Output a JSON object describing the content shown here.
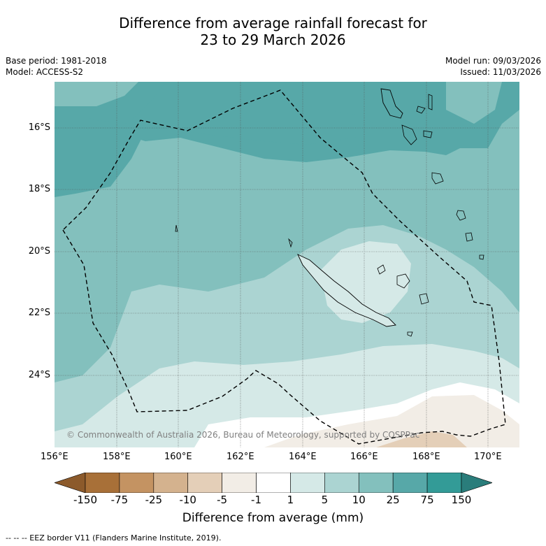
{
  "header": {
    "title_line1": "Difference from average rainfall forecast for",
    "title_line2": "23 to 29 March 2026",
    "base_period": "Base period: 1981-2018",
    "model": "Model: ACCESS-S2",
    "model_run": "Model run: 09/03/2026",
    "issued": "Issued: 11/03/2026"
  },
  "map": {
    "lon_labels": [
      "156°E",
      "158°E",
      "160°E",
      "162°E",
      "164°E",
      "166°E",
      "168°E",
      "170°E"
    ],
    "lat_labels": [
      "16°S",
      "18°S",
      "20°S",
      "22°S",
      "24°S"
    ],
    "copyright": "© Commonwealth of Australia 2026, Bureau of Meteorology, supported by COSPPac"
  },
  "colorbar": {
    "title": "Difference from average (mm)",
    "ticks": [
      "-150",
      "-75",
      "-25",
      "-10",
      "-5",
      "-1",
      "1",
      "5",
      "10",
      "25",
      "75",
      "150"
    ],
    "colors": [
      "#8c5a2b",
      "#a87038",
      "#c49362",
      "#d4b28e",
      "#e4cfb8",
      "#f2ede6",
      "#ffffff",
      "#d5e9e7",
      "#abd4d2",
      "#83c0bd",
      "#57a8a8",
      "#339b97",
      "#2a7d7b"
    ]
  },
  "footnote": "--  --  -- EEZ border V11 (Flanders Marine Institute, 2019)."
}
